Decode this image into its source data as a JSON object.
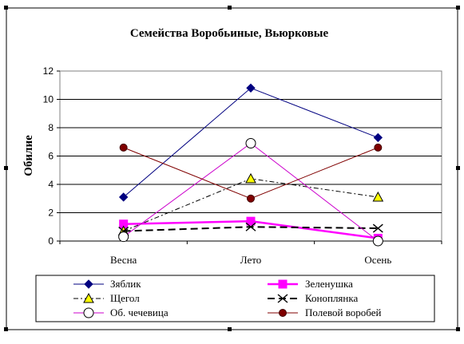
{
  "chart_data": {
    "type": "line",
    "title": "Семейства Воробьиные, Вьюрковые",
    "xlabel": "",
    "ylabel": "Обилие",
    "categories": [
      "Весна",
      "Лето",
      "Осень"
    ],
    "ylim": [
      0,
      12
    ],
    "yticks": [
      0,
      2,
      4,
      6,
      8,
      10,
      12
    ],
    "grid": true,
    "legend_position": "bottom",
    "series": [
      {
        "name": "Зяблик",
        "values": [
          3.1,
          10.8,
          7.3
        ],
        "color": "#000080",
        "marker": "diamond",
        "dash": "solid",
        "width": 1
      },
      {
        "name": "Зеленушка",
        "values": [
          1.2,
          1.4,
          0.2
        ],
        "color": "#ff00ff",
        "marker": "square",
        "dash": "solid",
        "width": 2.5
      },
      {
        "name": "Щегол",
        "values": [
          0.7,
          4.4,
          3.1
        ],
        "color": "#000000",
        "marker": "triangle",
        "dash": "dashdot",
        "width": 1
      },
      {
        "name": "Коноплянка",
        "values": [
          0.7,
          1.0,
          0.9
        ],
        "color": "#000000",
        "marker": "x",
        "dash": "dash",
        "width": 2
      },
      {
        "name": "Об. чечевица",
        "values": [
          0.3,
          6.9,
          0.0
        ],
        "color": "#cc00cc",
        "marker": "circle-open",
        "dash": "solid",
        "width": 1
      },
      {
        "name": "Полевой воробей",
        "values": [
          6.6,
          3.0,
          6.6
        ],
        "color": "#800000",
        "marker": "circle-filled",
        "dash": "solid",
        "width": 1
      }
    ]
  }
}
